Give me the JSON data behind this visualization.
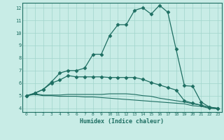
{
  "title": "",
  "xlabel": "Humidex (Indice chaleur)",
  "bg_color": "#c8ece6",
  "grid_color": "#a0d4cc",
  "line_color": "#1e6e62",
  "xlim": [
    -0.5,
    23.5
  ],
  "ylim": [
    3.7,
    12.4
  ],
  "yticks": [
    4,
    5,
    6,
    7,
    8,
    9,
    10,
    11,
    12
  ],
  "xticks": [
    0,
    1,
    2,
    3,
    4,
    5,
    6,
    7,
    8,
    9,
    10,
    11,
    12,
    13,
    14,
    15,
    16,
    17,
    18,
    19,
    20,
    21,
    22,
    23
  ],
  "series": [
    {
      "x": [
        0,
        1,
        2,
        3,
        4,
        5,
        6,
        7,
        8,
        9,
        10,
        11,
        12,
        13,
        14,
        15,
        16,
        17,
        18,
        19,
        20,
        21,
        22,
        23
      ],
      "y": [
        5.0,
        5.1,
        5.0,
        5.0,
        4.95,
        4.95,
        4.95,
        4.9,
        4.9,
        4.85,
        4.8,
        4.75,
        4.7,
        4.65,
        4.6,
        4.55,
        4.5,
        4.45,
        4.4,
        4.35,
        4.2,
        4.15,
        4.0,
        3.95
      ],
      "marker": null,
      "linewidth": 0.8
    },
    {
      "x": [
        0,
        1,
        2,
        3,
        4,
        5,
        6,
        7,
        8,
        9,
        10,
        11,
        12,
        13,
        14,
        15,
        16,
        17,
        18,
        19,
        20,
        21,
        22,
        23
      ],
      "y": [
        5.0,
        5.15,
        5.05,
        5.05,
        5.05,
        5.1,
        5.1,
        5.1,
        5.1,
        5.1,
        5.15,
        5.15,
        5.15,
        5.1,
        5.0,
        4.95,
        4.8,
        4.7,
        4.6,
        4.5,
        4.35,
        4.25,
        4.05,
        4.0
      ],
      "marker": null,
      "linewidth": 0.8
    },
    {
      "x": [
        0,
        1,
        2,
        3,
        4,
        5,
        6,
        7,
        8,
        9,
        10,
        11,
        12,
        13,
        14,
        15,
        16,
        17,
        18,
        19,
        20,
        21,
        22,
        23
      ],
      "y": [
        5.0,
        5.2,
        5.5,
        6.0,
        6.25,
        6.6,
        6.5,
        6.5,
        6.5,
        6.5,
        6.45,
        6.45,
        6.45,
        6.45,
        6.3,
        6.05,
        5.85,
        5.65,
        5.45,
        4.6,
        4.4,
        4.25,
        4.05,
        4.0
      ],
      "marker": "D",
      "markersize": 2.5,
      "linewidth": 0.9
    },
    {
      "x": [
        0,
        1,
        2,
        3,
        4,
        5,
        6,
        7,
        8,
        9,
        10,
        11,
        12,
        13,
        14,
        15,
        16,
        17,
        18,
        19,
        20,
        21,
        22,
        23
      ],
      "y": [
        5.0,
        5.2,
        5.5,
        6.1,
        6.8,
        7.0,
        7.0,
        7.2,
        8.3,
        8.3,
        9.8,
        10.65,
        10.65,
        11.8,
        12.0,
        11.5,
        12.2,
        11.65,
        8.7,
        5.8,
        5.75,
        4.5,
        4.1,
        4.0
      ],
      "marker": "D",
      "markersize": 2.5,
      "linewidth": 0.9
    }
  ]
}
